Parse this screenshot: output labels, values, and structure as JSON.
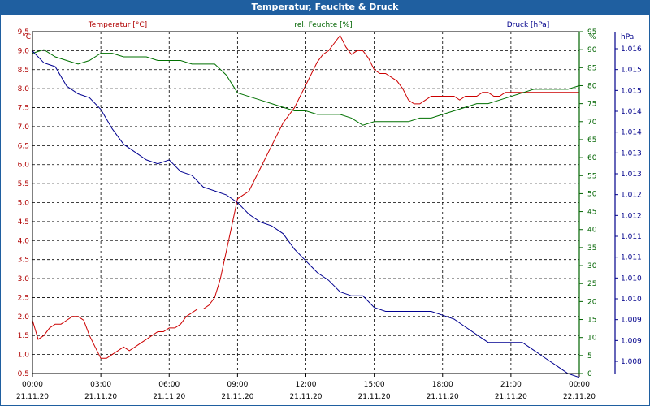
{
  "chart_data": {
    "type": "line",
    "title": "Temperatur, Feuchte & Druck",
    "x_labels_time": [
      "00:00",
      "03:00",
      "06:00",
      "09:00",
      "12:00",
      "15:00",
      "18:00",
      "21:00",
      "00:00"
    ],
    "x_labels_date": [
      "21.11.20",
      "21.11.20",
      "21.11.20",
      "21.11.20",
      "21.11.20",
      "21.11.20",
      "21.11.20",
      "21.11.20",
      "22.11.20"
    ],
    "x_hours": [
      0,
      3,
      6,
      9,
      12,
      15,
      18,
      21,
      24
    ],
    "axes": {
      "temperature": {
        "label": "Temperatur [°C]",
        "unit": "°C",
        "range": [
          0.5,
          9.5
        ],
        "ticks": [
          "9.5",
          "9.0",
          "8.5",
          "8.0",
          "7.5",
          "7.0",
          "6.5",
          "6.0",
          "5.5",
          "5.0",
          "4.5",
          "4.0",
          "3.5",
          "3.0",
          "2.5",
          "2.0",
          "1.5",
          "1.0",
          "0.5"
        ],
        "color": "#b00000"
      },
      "humidity": {
        "label": "rel. Feuchte [%]",
        "unit": "%",
        "range": [
          0,
          95
        ],
        "ticks": [
          "95",
          "90",
          "85",
          "80",
          "75",
          "70",
          "65",
          "60",
          "55",
          "50",
          "45",
          "40",
          "35",
          "30",
          "25",
          "20",
          "15",
          "10",
          "5",
          "0"
        ],
        "color": "#006400"
      },
      "pressure": {
        "label": "Druck [hPa]",
        "unit": "hPa",
        "range": [
          1007.7,
          1016.5
        ],
        "ticks": [
          "1.016",
          "1.015",
          "1.015",
          "1.014",
          "1.014",
          "1.013",
          "1.013",
          "1.012",
          "1.012",
          "1.011",
          "1.011",
          "1.010",
          "1.010",
          "1.009",
          "1.009",
          "1.008"
        ],
        "color": "#00008b"
      }
    },
    "series": [
      {
        "name": "Temperatur",
        "axis": "temperature",
        "color": "#cc0000",
        "x": [
          0,
          0.25,
          0.5,
          0.75,
          1,
          1.25,
          1.5,
          1.75,
          2,
          2.25,
          2.5,
          2.75,
          3,
          3.25,
          3.5,
          3.75,
          4,
          4.25,
          4.5,
          4.75,
          5,
          5.25,
          5.5,
          5.75,
          6,
          6.25,
          6.5,
          6.75,
          7,
          7.25,
          7.5,
          7.75,
          8,
          8.25,
          8.5,
          8.75,
          9,
          9.25,
          9.5,
          9.75,
          10,
          10.25,
          10.5,
          10.75,
          11,
          11.25,
          11.5,
          11.75,
          12,
          12.25,
          12.5,
          12.75,
          13,
          13.25,
          13.5,
          13.75,
          14,
          14.25,
          14.5,
          14.75,
          15,
          15.25,
          15.5,
          15.75,
          16,
          16.25,
          16.5,
          16.75,
          17,
          17.25,
          17.5,
          17.75,
          18,
          18.25,
          18.5,
          18.75,
          19,
          19.25,
          19.5,
          19.75,
          20,
          20.25,
          20.5,
          20.75,
          21,
          21.25,
          21.5,
          21.75,
          22,
          22.25,
          22.5,
          22.75,
          23,
          23.25,
          23.5,
          23.75,
          24
        ],
        "values": [
          1.9,
          1.4,
          1.5,
          1.7,
          1.8,
          1.8,
          1.9,
          2.0,
          2.0,
          1.9,
          1.5,
          1.2,
          0.9,
          0.9,
          1.0,
          1.1,
          1.2,
          1.1,
          1.2,
          1.3,
          1.4,
          1.5,
          1.6,
          1.6,
          1.7,
          1.7,
          1.8,
          2.0,
          2.1,
          2.2,
          2.2,
          2.3,
          2.5,
          3.0,
          3.7,
          4.4,
          5.1,
          5.2,
          5.3,
          5.6,
          5.9,
          6.2,
          6.5,
          6.8,
          7.1,
          7.3,
          7.5,
          7.8,
          8.1,
          8.4,
          8.7,
          8.9,
          9.0,
          9.2,
          9.4,
          9.1,
          8.9,
          9.0,
          9.0,
          8.8,
          8.5,
          8.4,
          8.4,
          8.3,
          8.2,
          8.0,
          7.7,
          7.6,
          7.6,
          7.7,
          7.8,
          7.8,
          7.8,
          7.8,
          7.8,
          7.7,
          7.8,
          7.8,
          7.8,
          7.9,
          7.9,
          7.8,
          7.8,
          7.9,
          7.9,
          7.9,
          7.9,
          7.9,
          7.9,
          7.9,
          7.9,
          7.9,
          7.9,
          7.9,
          7.9,
          7.9,
          7.9
        ]
      },
      {
        "name": "rel. Feuchte",
        "axis": "humidity",
        "color": "#007000",
        "x": [
          0,
          0.5,
          1,
          1.5,
          2,
          2.5,
          3,
          3.5,
          4,
          4.5,
          5,
          5.5,
          6,
          6.5,
          7,
          7.5,
          8,
          8.5,
          9,
          9.5,
          10,
          10.5,
          11,
          11.5,
          12,
          12.5,
          13,
          13.5,
          14,
          14.5,
          15,
          15.5,
          16,
          16.5,
          17,
          17.5,
          18,
          18.5,
          19,
          19.5,
          20,
          20.5,
          21,
          21.5,
          22,
          22.5,
          23,
          23.5,
          24
        ],
        "values": [
          89,
          90,
          88,
          87,
          86,
          87,
          89,
          89,
          88,
          88,
          88,
          87,
          87,
          87,
          86,
          86,
          86,
          83,
          78,
          77,
          76,
          75,
          74,
          73,
          73,
          72,
          72,
          72,
          71,
          69,
          70,
          70,
          70,
          70,
          71,
          71,
          72,
          73,
          74,
          75,
          75,
          76,
          77,
          78,
          79,
          79,
          79,
          79,
          80
        ]
      },
      {
        "name": "Druck",
        "axis": "pressure",
        "color": "#000090",
        "x": [
          0,
          0.5,
          1,
          1.5,
          2,
          2.5,
          3,
          3.5,
          4,
          4.5,
          5,
          5.5,
          6,
          6.5,
          7,
          7.5,
          8,
          8.5,
          9,
          9.5,
          10,
          10.5,
          11,
          11.5,
          12,
          12.5,
          13,
          13.5,
          14,
          14.5,
          15,
          15.5,
          16,
          16.5,
          17,
          17.5,
          18,
          18.5,
          19,
          19.5,
          20,
          20.5,
          21,
          21.5,
          22,
          22.5,
          23,
          23.5,
          24
        ],
        "values": [
          1016.0,
          1015.7,
          1015.6,
          1015.1,
          1014.9,
          1014.8,
          1014.5,
          1014.0,
          1013.6,
          1013.4,
          1013.2,
          1013.1,
          1013.2,
          1012.9,
          1012.8,
          1012.5,
          1012.4,
          1012.3,
          1012.1,
          1011.8,
          1011.6,
          1011.5,
          1011.3,
          1010.9,
          1010.6,
          1010.3,
          1010.1,
          1009.8,
          1009.7,
          1009.7,
          1009.4,
          1009.3,
          1009.3,
          1009.3,
          1009.3,
          1009.3,
          1009.2,
          1009.1,
          1008.9,
          1008.7,
          1008.5,
          1008.5,
          1008.5,
          1008.5,
          1008.3,
          1008.1,
          1007.9,
          1007.7,
          1007.6
        ]
      }
    ],
    "grid": true
  }
}
